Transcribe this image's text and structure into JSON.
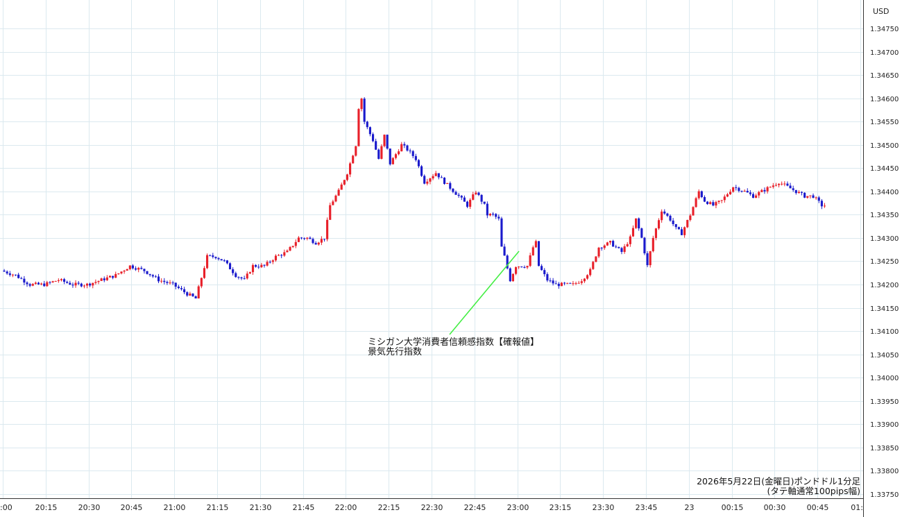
{
  "chart_data": {
    "type": "candlestick",
    "currency_label": "USD",
    "x_ticks": [
      ":00",
      "20:15",
      "20:30",
      "20:45",
      "21:00",
      "21:15",
      "21:30",
      "21:45",
      "22:00",
      "22:15",
      "22:30",
      "22:45",
      "23:00",
      "23:15",
      "23:30",
      "23:45",
      "23",
      "00:15",
      "00:30",
      "00:45",
      "01:"
    ],
    "y_ticks": [
      "1.34750",
      "1.34700",
      "1.34650",
      "1.34600",
      "1.34550",
      "1.34500",
      "1.34450",
      "1.34400",
      "1.34350",
      "1.34300",
      "1.34250",
      "1.34200",
      "1.34150",
      "1.34100",
      "1.34050",
      "1.34000",
      "1.33950",
      "1.33900",
      "1.33850",
      "1.33800",
      "1.33750"
    ],
    "ylim": [
      1.3374,
      1.3478
    ],
    "grid": true,
    "up_color": "#e8202a",
    "down_color": "#1a1acc",
    "annotation": {
      "line1": "ミシガン大学消費者信頼感指数【確報値】",
      "line2": "景気先行指数",
      "event_time": "23:00"
    },
    "caption": {
      "line1": "2026年5月22日(金曜日)ポンドドル1分足",
      "line2": "(タテ軸通常100pips幅)"
    },
    "price_path": [
      [
        0,
        1.3423
      ],
      [
        5,
        1.3422
      ],
      [
        10,
        1.342
      ],
      [
        15,
        1.342
      ],
      [
        20,
        1.3421
      ],
      [
        25,
        1.342
      ],
      [
        30,
        1.342
      ],
      [
        35,
        1.3421
      ],
      [
        40,
        1.3422
      ],
      [
        45,
        1.3424
      ],
      [
        50,
        1.3423
      ],
      [
        55,
        1.3421
      ],
      [
        60,
        1.342
      ],
      [
        65,
        1.3418
      ],
      [
        68,
        1.3417
      ],
      [
        72,
        1.3426
      ],
      [
        75,
        1.3426
      ],
      [
        78,
        1.3425
      ],
      [
        82,
        1.3422
      ],
      [
        85,
        1.3421
      ],
      [
        88,
        1.3424
      ],
      [
        92,
        1.3424
      ],
      [
        96,
        1.3426
      ],
      [
        100,
        1.3427
      ],
      [
        104,
        1.343
      ],
      [
        107,
        1.343
      ],
      [
        110,
        1.3429
      ],
      [
        113,
        1.343
      ],
      [
        115,
        1.3437
      ],
      [
        118,
        1.344
      ],
      [
        121,
        1.3444
      ],
      [
        124,
        1.345
      ],
      [
        125,
        1.3458
      ],
      [
        126,
        1.346
      ],
      [
        127,
        1.3455
      ],
      [
        130,
        1.3451
      ],
      [
        132,
        1.3447
      ],
      [
        134,
        1.3452
      ],
      [
        136,
        1.3446
      ],
      [
        138,
        1.3448
      ],
      [
        140,
        1.345
      ],
      [
        142,
        1.3449
      ],
      [
        145,
        1.3447
      ],
      [
        148,
        1.3442
      ],
      [
        152,
        1.3444
      ],
      [
        155,
        1.3442
      ],
      [
        160,
        1.3439
      ],
      [
        163,
        1.3437
      ],
      [
        166,
        1.344
      ],
      [
        169,
        1.3437
      ],
      [
        170,
        1.3435
      ],
      [
        172,
        1.3435
      ],
      [
        174,
        1.3434
      ],
      [
        175,
        1.3428
      ],
      [
        176,
        1.3426
      ],
      [
        178,
        1.3421
      ],
      [
        180,
        1.3424
      ],
      [
        184,
        1.3424
      ],
      [
        186,
        1.3428
      ],
      [
        187,
        1.3429
      ],
      [
        188,
        1.3424
      ],
      [
        191,
        1.3421
      ],
      [
        194,
        1.342
      ],
      [
        197,
        1.342
      ],
      [
        200,
        1.342
      ],
      [
        203,
        1.3421
      ],
      [
        206,
        1.3423
      ],
      [
        209,
        1.3428
      ],
      [
        213,
        1.3429
      ],
      [
        217,
        1.3427
      ],
      [
        220,
        1.343
      ],
      [
        222,
        1.3434
      ],
      [
        224,
        1.343
      ],
      [
        226,
        1.3424
      ],
      [
        228,
        1.343
      ],
      [
        231,
        1.3436
      ],
      [
        234,
        1.3434
      ],
      [
        236,
        1.3432
      ],
      [
        238,
        1.3431
      ],
      [
        241,
        1.3435
      ],
      [
        244,
        1.344
      ],
      [
        246,
        1.3438
      ],
      [
        249,
        1.3437
      ],
      [
        252,
        1.3438
      ],
      [
        256,
        1.3441
      ],
      [
        260,
        1.344
      ],
      [
        263,
        1.3439
      ],
      [
        266,
        1.344
      ],
      [
        269,
        1.3441
      ],
      [
        272,
        1.3442
      ],
      [
        275,
        1.3441
      ],
      [
        278,
        1.344
      ],
      [
        281,
        1.3439
      ],
      [
        284,
        1.3439
      ],
      [
        287,
        1.3437
      ]
    ]
  }
}
